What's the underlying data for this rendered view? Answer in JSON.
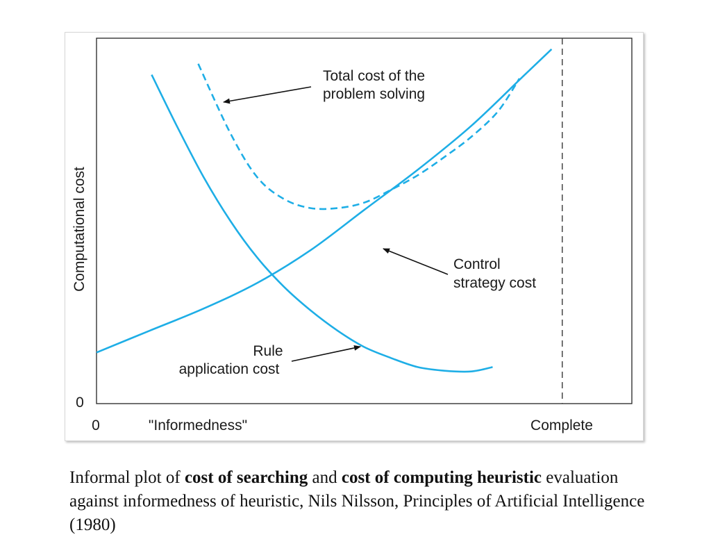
{
  "chart_data": {
    "type": "line",
    "ylabel": "Computational cost",
    "xlabel": "\"Informedness\"",
    "x_tick_labels": {
      "origin": "0",
      "end": "Complete"
    },
    "y_tick_labels": {
      "origin": "0"
    },
    "xlim": [
      0,
      1
    ],
    "ylim": [
      0,
      1
    ],
    "grid": false,
    "series": [
      {
        "name": "Rule application cost",
        "style": "solid",
        "color": "#1eaee6",
        "x": [
          0.103,
          0.15,
          0.2,
          0.25,
          0.3,
          0.35,
          0.4,
          0.45,
          0.5,
          0.55,
          0.6,
          0.65,
          0.7,
          0.74
        ],
        "y": [
          0.9,
          0.76,
          0.62,
          0.5,
          0.4,
          0.32,
          0.255,
          0.2,
          0.155,
          0.125,
          0.1,
          0.09,
          0.088,
          0.1
        ]
      },
      {
        "name": "Control strategy cost",
        "style": "solid",
        "color": "#1eaee6",
        "x": [
          0.0,
          0.1,
          0.2,
          0.3,
          0.4,
          0.5,
          0.6,
          0.7,
          0.8,
          0.85
        ],
        "y": [
          0.14,
          0.2,
          0.26,
          0.33,
          0.42,
          0.53,
          0.64,
          0.76,
          0.9,
          0.97
        ]
      },
      {
        "name": "Total cost of the problem solving",
        "style": "dashed",
        "color": "#1eaee6",
        "x": [
          0.19,
          0.25,
          0.3,
          0.35,
          0.4,
          0.45,
          0.5,
          0.55,
          0.6,
          0.65,
          0.7,
          0.75,
          0.79
        ],
        "y": [
          0.93,
          0.74,
          0.62,
          0.56,
          0.535,
          0.535,
          0.55,
          0.585,
          0.625,
          0.675,
          0.73,
          0.8,
          0.89
        ]
      }
    ],
    "reference_lines": [
      {
        "axis": "x",
        "value": 0.87,
        "style": "dashed",
        "color": "#444444"
      }
    ],
    "annotations": [
      {
        "lines": [
          "Total cost of the",
          "problem solving"
        ],
        "points_to_series": "Total cost of the problem solving"
      },
      {
        "lines": [
          "Control",
          "strategy cost"
        ],
        "points_to_series": "Control strategy cost"
      },
      {
        "lines": [
          "Rule",
          "application cost"
        ],
        "points_to_series": "Rule application cost"
      }
    ]
  },
  "caption": {
    "t1": "Informal plot of ",
    "b1": "cost of searching",
    "t2": " and ",
    "b2": "cost of computing heuristic",
    "t3": " evaluation against informedness of heuristic, Nils Nilsson, Principles of Artificial Intelligence (1980)"
  }
}
